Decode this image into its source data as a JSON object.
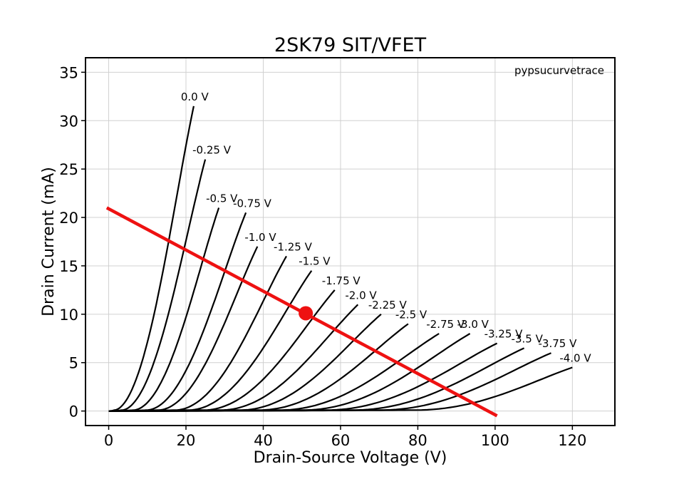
{
  "chart_data": {
    "type": "line",
    "title": "2SK79 SIT/VFET",
    "xlabel": "Drain-Source Voltage (V)",
    "ylabel": "Drain Current (mA)",
    "watermark": "pypsucurvetrace",
    "xlim": [
      -6,
      131
    ],
    "ylim": [
      -1.5,
      36.5
    ],
    "xticks": [
      "0",
      "20",
      "40",
      "60",
      "80",
      "100",
      "120"
    ],
    "yticks": [
      "0",
      "5",
      "10",
      "15",
      "20",
      "25",
      "30",
      "35"
    ],
    "grid": true,
    "series": [
      {
        "name": "0.0 V",
        "gate_v": 0.0,
        "x_on": 1.5,
        "x_end": 22.0,
        "y_end": 31.5
      },
      {
        "name": "-0.25 V",
        "gate_v": -0.25,
        "x_on": 3.5,
        "x_end": 25.0,
        "y_end": 26.0
      },
      {
        "name": "-0.5 V",
        "gate_v": -0.5,
        "x_on": 6.5,
        "x_end": 28.5,
        "y_end": 21.0
      },
      {
        "name": "-0.75 V",
        "gate_v": -0.75,
        "x_on": 10.0,
        "x_end": 35.5,
        "y_end": 20.5
      },
      {
        "name": "-1.0 V",
        "gate_v": -1.0,
        "x_on": 13.0,
        "x_end": 38.5,
        "y_end": 17.0
      },
      {
        "name": "-1.25 V",
        "gate_v": -1.25,
        "x_on": 17.5,
        "x_end": 46.0,
        "y_end": 16.0
      },
      {
        "name": "-1.5 V",
        "gate_v": -1.5,
        "x_on": 21.0,
        "x_end": 52.5,
        "y_end": 14.5
      },
      {
        "name": "-1.75 V",
        "gate_v": -1.75,
        "x_on": 25.0,
        "x_end": 58.5,
        "y_end": 12.5
      },
      {
        "name": "-2.0 V",
        "gate_v": -2.0,
        "x_on": 29.5,
        "x_end": 64.5,
        "y_end": 11.0
      },
      {
        "name": "-2.25 V",
        "gate_v": -2.25,
        "x_on": 34.5,
        "x_end": 70.5,
        "y_end": 10.0
      },
      {
        "name": "-2.5 V",
        "gate_v": -2.5,
        "x_on": 39.5,
        "x_end": 77.5,
        "y_end": 9.0
      },
      {
        "name": "-2.75 V",
        "gate_v": -2.75,
        "x_on": 45.0,
        "x_end": 85.5,
        "y_end": 8.0
      },
      {
        "name": "-3.0 V",
        "gate_v": -3.0,
        "x_on": 51.0,
        "x_end": 93.5,
        "y_end": 8.0
      },
      {
        "name": "-3.25 V",
        "gate_v": -3.25,
        "x_on": 57.0,
        "x_end": 100.5,
        "y_end": 7.0
      },
      {
        "name": "-3.5 V",
        "gate_v": -3.5,
        "x_on": 64.0,
        "x_end": 107.5,
        "y_end": 6.5
      },
      {
        "name": "-3.75 V",
        "gate_v": -3.75,
        "x_on": 71.0,
        "x_end": 114.5,
        "y_end": 6.0
      },
      {
        "name": "-4.0 V",
        "gate_v": -4.0,
        "x_on": 80.0,
        "x_end": 120.0,
        "y_end": 4.5
      }
    ],
    "load_line": {
      "x": [
        -0.5,
        100.5
      ],
      "y": [
        21.0,
        -0.5
      ],
      "color": "#ee1111"
    },
    "operating_point": {
      "x": 51.0,
      "y": 10.1,
      "color": "#ee1111"
    }
  }
}
